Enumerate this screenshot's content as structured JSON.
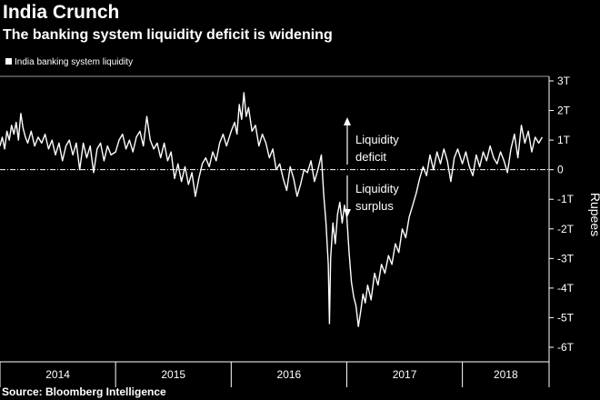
{
  "header": {
    "title": "India Crunch",
    "subtitle": "The banking system liquidity deficit is widening"
  },
  "footer": {
    "source": "Source: Bloomberg Intelligence"
  },
  "chart_data": {
    "type": "line",
    "title": "India Crunch",
    "subtitle": "The banking system liquidity deficit is widening",
    "ylabel": "Rupees",
    "xlabel": "",
    "ylim": [
      -6,
      3
    ],
    "y_ticks": [
      3,
      2,
      1,
      0,
      -1,
      -2,
      -3,
      -4,
      -5,
      -6
    ],
    "y_tick_labels": [
      "3T",
      "2T",
      "1T",
      "0",
      "-1T",
      "-2T",
      "-3T",
      "-4T",
      "-5T",
      "-6T"
    ],
    "x_range": [
      2014.0,
      2018.75
    ],
    "x_boundaries": [
      2014.0,
      2015.0,
      2016.0,
      2017.0,
      2018.0,
      2018.75
    ],
    "x_categories": [
      "2014",
      "2015",
      "2016",
      "2017",
      "2018"
    ],
    "legend": {
      "label": "India banking system liquidity",
      "placement": "top-left"
    },
    "annotations": {
      "up_label": [
        "Liquidity",
        "deficit"
      ],
      "down_label": [
        "Liquidity",
        "surplus"
      ]
    },
    "colors": {
      "line": "#ffffff",
      "background": "#000000",
      "zero_line": "#ffffff"
    },
    "series": [
      {
        "name": "India banking system liquidity",
        "points": [
          [
            2014.0,
            0.8
          ],
          [
            2014.02,
            1.1
          ],
          [
            2014.04,
            0.7
          ],
          [
            2014.06,
            1.3
          ],
          [
            2014.08,
            1.0
          ],
          [
            2014.1,
            1.5
          ],
          [
            2014.12,
            1.2
          ],
          [
            2014.14,
            1.6
          ],
          [
            2014.16,
            1.0
          ],
          [
            2014.18,
            1.9
          ],
          [
            2014.2,
            1.4
          ],
          [
            2014.22,
            1.1
          ],
          [
            2014.24,
            0.9
          ],
          [
            2014.27,
            1.3
          ],
          [
            2014.3,
            0.8
          ],
          [
            2014.33,
            1.1
          ],
          [
            2014.36,
            0.9
          ],
          [
            2014.39,
            1.2
          ],
          [
            2014.42,
            0.7
          ],
          [
            2014.45,
            1.0
          ],
          [
            2014.48,
            0.5
          ],
          [
            2014.51,
            0.9
          ],
          [
            2014.54,
            0.3
          ],
          [
            2014.57,
            0.8
          ],
          [
            2014.6,
            1.0
          ],
          [
            2014.63,
            0.5
          ],
          [
            2014.66,
            0.9
          ],
          [
            2014.69,
            0.0
          ],
          [
            2014.72,
            0.9
          ],
          [
            2014.75,
            0.4
          ],
          [
            2014.78,
            0.8
          ],
          [
            2014.81,
            -0.1
          ],
          [
            2014.84,
            0.7
          ],
          [
            2014.87,
            0.9
          ],
          [
            2014.9,
            0.3
          ],
          [
            2014.93,
            0.8
          ],
          [
            2014.96,
            0.5
          ],
          [
            2015.0,
            0.6
          ],
          [
            2015.03,
            1.0
          ],
          [
            2015.06,
            1.2
          ],
          [
            2015.09,
            0.7
          ],
          [
            2015.12,
            1.0
          ],
          [
            2015.15,
            0.6
          ],
          [
            2015.18,
            1.1
          ],
          [
            2015.21,
            1.3
          ],
          [
            2015.24,
            0.8
          ],
          [
            2015.27,
            1.8
          ],
          [
            2015.3,
            1.0
          ],
          [
            2015.33,
            0.7
          ],
          [
            2015.36,
            0.9
          ],
          [
            2015.39,
            0.4
          ],
          [
            2015.42,
            0.9
          ],
          [
            2015.45,
            0.3
          ],
          [
            2015.48,
            0.6
          ],
          [
            2015.51,
            -0.3
          ],
          [
            2015.54,
            0.2
          ],
          [
            2015.57,
            -0.4
          ],
          [
            2015.6,
            0.1
          ],
          [
            2015.63,
            -0.5
          ],
          [
            2015.66,
            -0.1
          ],
          [
            2015.69,
            -0.9
          ],
          [
            2015.72,
            -0.3
          ],
          [
            2015.75,
            0.2
          ],
          [
            2015.78,
            0.4
          ],
          [
            2015.81,
            0.1
          ],
          [
            2015.84,
            0.6
          ],
          [
            2015.87,
            0.3
          ],
          [
            2015.9,
            0.9
          ],
          [
            2015.93,
            1.2
          ],
          [
            2015.96,
            0.8
          ],
          [
            2016.0,
            1.3
          ],
          [
            2016.03,
            1.6
          ],
          [
            2016.05,
            1.2
          ],
          [
            2016.07,
            2.2
          ],
          [
            2016.09,
            1.7
          ],
          [
            2016.11,
            2.6
          ],
          [
            2016.13,
            1.8
          ],
          [
            2016.15,
            2.1
          ],
          [
            2016.18,
            1.3
          ],
          [
            2016.21,
            1.5
          ],
          [
            2016.24,
            0.8
          ],
          [
            2016.27,
            1.2
          ],
          [
            2016.3,
            0.9
          ],
          [
            2016.33,
            0.4
          ],
          [
            2016.36,
            0.7
          ],
          [
            2016.39,
            0.0
          ],
          [
            2016.42,
            0.2
          ],
          [
            2016.45,
            -0.3
          ],
          [
            2016.48,
            -0.7
          ],
          [
            2016.51,
            0.1
          ],
          [
            2016.54,
            -0.3
          ],
          [
            2016.57,
            -0.9
          ],
          [
            2016.6,
            -0.5
          ],
          [
            2016.63,
            0.0
          ],
          [
            2016.66,
            -0.1
          ],
          [
            2016.69,
            0.3
          ],
          [
            2016.72,
            -0.4
          ],
          [
            2016.75,
            0.0
          ],
          [
            2016.78,
            0.5
          ],
          [
            2016.8,
            -0.8
          ],
          [
            2016.82,
            -1.8
          ],
          [
            2016.84,
            -3.2
          ],
          [
            2016.85,
            -5.2
          ],
          [
            2016.86,
            -3.0
          ],
          [
            2016.88,
            -1.8
          ],
          [
            2016.9,
            -2.5
          ],
          [
            2016.92,
            -1.5
          ],
          [
            2016.94,
            -1.1
          ],
          [
            2016.96,
            -1.8
          ],
          [
            2016.98,
            -1.2
          ],
          [
            2017.0,
            -1.6
          ],
          [
            2017.02,
            -2.8
          ],
          [
            2017.04,
            -3.8
          ],
          [
            2017.06,
            -4.3
          ],
          [
            2017.08,
            -4.6
          ],
          [
            2017.1,
            -5.3
          ],
          [
            2017.12,
            -4.8
          ],
          [
            2017.14,
            -4.2
          ],
          [
            2017.16,
            -4.5
          ],
          [
            2017.18,
            -3.9
          ],
          [
            2017.21,
            -4.4
          ],
          [
            2017.24,
            -3.5
          ],
          [
            2017.27,
            -3.9
          ],
          [
            2017.3,
            -3.2
          ],
          [
            2017.33,
            -3.5
          ],
          [
            2017.36,
            -2.9
          ],
          [
            2017.39,
            -3.2
          ],
          [
            2017.42,
            -2.5
          ],
          [
            2017.45,
            -2.8
          ],
          [
            2017.48,
            -2.0
          ],
          [
            2017.51,
            -2.3
          ],
          [
            2017.54,
            -1.6
          ],
          [
            2017.57,
            -1.2
          ],
          [
            2017.6,
            -0.8
          ],
          [
            2017.63,
            -0.3
          ],
          [
            2017.66,
            0.1
          ],
          [
            2017.69,
            -0.2
          ],
          [
            2017.72,
            0.5
          ],
          [
            2017.75,
            0.0
          ],
          [
            2017.78,
            0.6
          ],
          [
            2017.81,
            0.2
          ],
          [
            2017.84,
            0.7
          ],
          [
            2017.87,
            0.3
          ],
          [
            2017.9,
            -0.4
          ],
          [
            2017.93,
            0.4
          ],
          [
            2017.96,
            0.7
          ],
          [
            2018.0,
            0.2
          ],
          [
            2018.03,
            0.6
          ],
          [
            2018.06,
            0.1
          ],
          [
            2018.09,
            -0.2
          ],
          [
            2018.12,
            0.5
          ],
          [
            2018.15,
            0.1
          ],
          [
            2018.18,
            0.6
          ],
          [
            2018.21,
            0.3
          ],
          [
            2018.24,
            0.8
          ],
          [
            2018.27,
            0.4
          ],
          [
            2018.3,
            0.2
          ],
          [
            2018.33,
            0.6
          ],
          [
            2018.36,
            0.3
          ],
          [
            2018.39,
            -0.1
          ],
          [
            2018.42,
            0.7
          ],
          [
            2018.45,
            1.2
          ],
          [
            2018.48,
            0.4
          ],
          [
            2018.51,
            1.5
          ],
          [
            2018.54,
            0.9
          ],
          [
            2018.57,
            1.3
          ],
          [
            2018.6,
            0.6
          ],
          [
            2018.63,
            1.1
          ],
          [
            2018.66,
            0.9
          ],
          [
            2018.69,
            1.1
          ]
        ]
      }
    ]
  }
}
